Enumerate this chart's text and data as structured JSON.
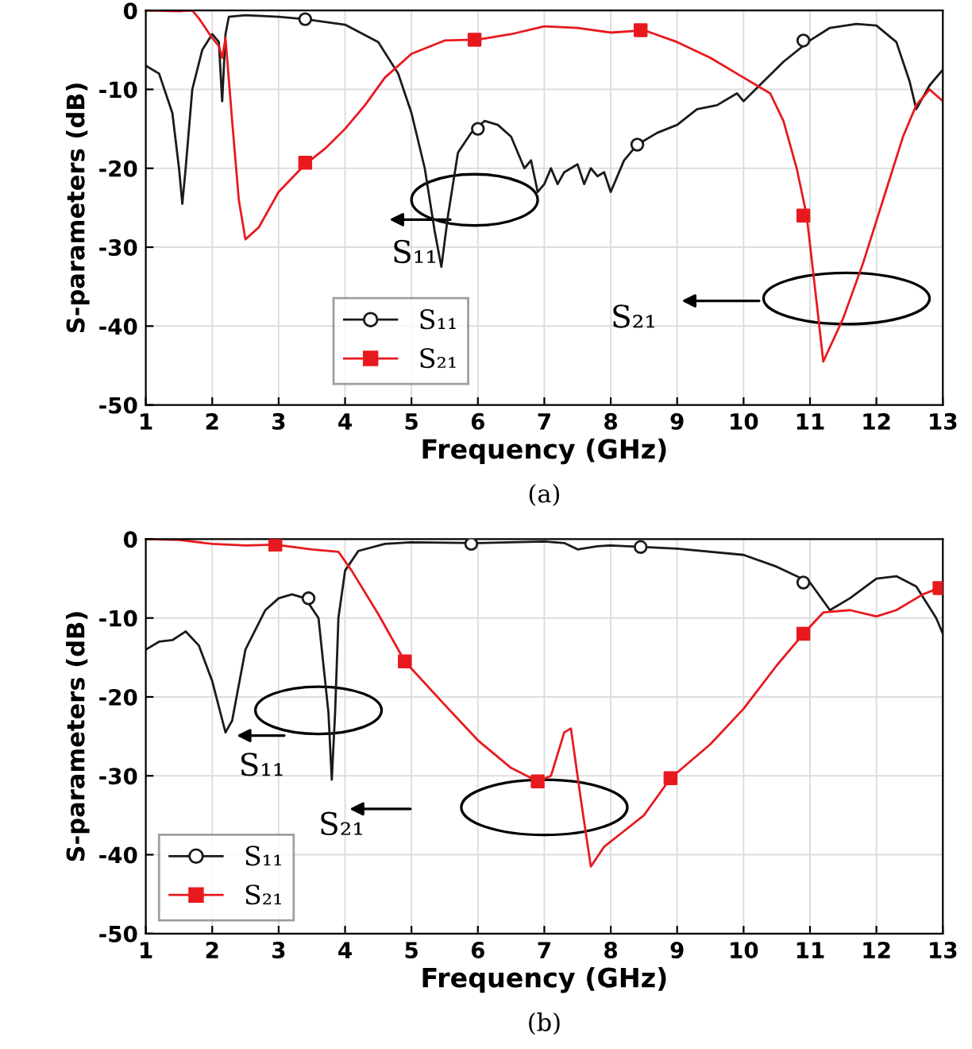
{
  "chart_data": [
    {
      "type": "line",
      "xlabel": "Frequency (GHz)",
      "ylabel": "S-parameters (dB)",
      "xlim": [
        1,
        13
      ],
      "ylim": [
        -50,
        0
      ],
      "xticks": [
        1,
        2,
        3,
        4,
        5,
        6,
        7,
        8,
        9,
        10,
        11,
        12,
        13
      ],
      "yticks": [
        -50,
        -40,
        -30,
        -20,
        -10,
        0
      ],
      "grid": true,
      "legend": "bottom",
      "line_style": "solid",
      "annotations": [
        "(a)",
        "S₁₁",
        "S₂₁"
      ],
      "series": [
        {
          "name": "S₁₁",
          "color": "#1a1a1a",
          "x": [
            1.0,
            1.2,
            1.4,
            1.5,
            1.55,
            1.6,
            1.7,
            1.85,
            2.0,
            2.1,
            2.15,
            2.2,
            2.25,
            2.5,
            3.0,
            3.4,
            4.0,
            4.5,
            4.8,
            5.0,
            5.2,
            5.35,
            5.45,
            5.55,
            5.7,
            5.9,
            6.1,
            6.3,
            6.5,
            6.7,
            6.8,
            6.9,
            7.0,
            7.1,
            7.2,
            7.3,
            7.5,
            7.6,
            7.7,
            7.8,
            7.9,
            8.0,
            8.2,
            8.4,
            8.7,
            9.0,
            9.3,
            9.6,
            9.9,
            10.0,
            10.3,
            10.6,
            11.0,
            11.3,
            11.7,
            12.0,
            12.3,
            12.5,
            12.6,
            12.7,
            12.8,
            13.0
          ],
          "values": [
            -7,
            -8,
            -13,
            -20,
            -24.5,
            -20,
            -10,
            -5,
            -3,
            -4,
            -11.5,
            -3,
            -0.8,
            -0.6,
            -0.8,
            -1.1,
            -1.8,
            -4,
            -8,
            -13,
            -20,
            -28,
            -32.5,
            -26,
            -18,
            -15.5,
            -14,
            -14.5,
            -16,
            -20,
            -19,
            -23,
            -22,
            -20,
            -22,
            -20.5,
            -19.5,
            -22,
            -20,
            -21,
            -20.5,
            -23,
            -19,
            -17,
            -15.5,
            -14.5,
            -12.5,
            -12,
            -10.5,
            -11.5,
            -9,
            -6.5,
            -3.8,
            -2.2,
            -1.7,
            -1.9,
            -4,
            -9,
            -12.5,
            -11,
            -9.5,
            -7.5
          ]
        },
        {
          "type": "scatter",
          "color": "#1a1a1a",
          "marker": "circle",
          "x": [
            3.4,
            6.0,
            8.4,
            10.9
          ],
          "values": [
            -1.1,
            -15,
            -17,
            -3.8
          ]
        },
        {
          "name": "S₂₁",
          "color": "#e8191e",
          "x": [
            1.0,
            1.5,
            1.7,
            1.8,
            2.0,
            2.1,
            2.15,
            2.2,
            2.3,
            2.4,
            2.5,
            2.7,
            3.0,
            3.4,
            3.7,
            4.0,
            4.3,
            4.6,
            5.0,
            5.5,
            6.0,
            6.5,
            7.0,
            7.5,
            8.0,
            8.5,
            9.0,
            9.5,
            10.0,
            10.4,
            10.6,
            10.8,
            10.95,
            11.1,
            11.2,
            11.5,
            11.8,
            12.1,
            12.4,
            12.6,
            12.8,
            13.0
          ],
          "values": [
            0,
            -0.1,
            0,
            -1,
            -3.5,
            -4.5,
            -6,
            -3.5,
            -14,
            -24,
            -29,
            -27.5,
            -23,
            -19.5,
            -17.5,
            -15,
            -12,
            -8.5,
            -5.5,
            -3.8,
            -3.7,
            -3,
            -2,
            -2.2,
            -2.8,
            -2.5,
            -4,
            -6,
            -8.5,
            -10.5,
            -14,
            -20,
            -26,
            -37,
            -44.5,
            -39,
            -32,
            -24,
            -16,
            -12,
            -10,
            -11.5
          ]
        },
        {
          "type": "scatter",
          "color": "#e8191e",
          "marker": "square",
          "x": [
            3.4,
            5.95,
            8.45,
            10.9
          ],
          "values": [
            -19.3,
            -3.7,
            -2.5,
            -26
          ]
        }
      ]
    },
    {
      "type": "line",
      "xlabel": "Frequency (GHz)",
      "ylabel": "S-parameters (dB)",
      "xlim": [
        1,
        13
      ],
      "ylim": [
        -50,
        0
      ],
      "xticks": [
        1,
        2,
        3,
        4,
        5,
        6,
        7,
        8,
        9,
        10,
        11,
        12,
        13
      ],
      "yticks": [
        -50,
        -40,
        -30,
        -20,
        -10,
        0
      ],
      "grid": true,
      "legend": "bottom left",
      "line_style": "solid",
      "annotations": [
        "(b)",
        "S₁₁",
        "S₂₁"
      ],
      "series": [
        {
          "name": "S₁₁",
          "color": "#1a1a1a",
          "x": [
            1.0,
            1.2,
            1.4,
            1.6,
            1.8,
            2.0,
            2.2,
            2.3,
            2.5,
            2.8,
            3.0,
            3.2,
            3.4,
            3.6,
            3.75,
            3.8,
            3.85,
            3.9,
            4.0,
            4.2,
            4.6,
            5.0,
            6.0,
            7.0,
            7.3,
            7.5,
            7.8,
            8.0,
            8.5,
            9.0,
            10.0,
            10.5,
            11.0,
            11.3,
            11.6,
            12.0,
            12.3,
            12.6,
            12.9,
            13.0
          ],
          "values": [
            -14,
            -13,
            -12.8,
            -11.7,
            -13.5,
            -18,
            -24.5,
            -23,
            -14,
            -9,
            -7.5,
            -7,
            -7.5,
            -10,
            -22,
            -30.5,
            -22,
            -10,
            -4,
            -1.5,
            -0.6,
            -0.4,
            -0.5,
            -0.3,
            -0.5,
            -1.3,
            -0.9,
            -0.8,
            -1.0,
            -1.2,
            -2.0,
            -3.5,
            -5.5,
            -9,
            -7.5,
            -5.0,
            -4.7,
            -6,
            -10,
            -12
          ]
        },
        {
          "type": "scatter",
          "color": "#1a1a1a",
          "marker": "circle",
          "x": [
            3.45,
            5.9,
            8.45,
            10.9
          ],
          "values": [
            -7.5,
            -0.6,
            -1.0,
            -5.5
          ]
        },
        {
          "name": "S₂₁",
          "color": "#e8191e",
          "x": [
            1.0,
            1.5,
            2.0,
            2.5,
            2.95,
            3.5,
            3.9,
            4.1,
            4.5,
            4.9,
            5.5,
            6.0,
            6.5,
            6.9,
            7.1,
            7.3,
            7.4,
            7.55,
            7.7,
            7.9,
            8.2,
            8.5,
            8.9,
            9.5,
            10.0,
            10.5,
            10.9,
            11.2,
            11.6,
            12.0,
            12.3,
            12.7,
            13.0
          ],
          "values": [
            0,
            -0.1,
            -0.6,
            -0.8,
            -0.7,
            -1.3,
            -1.6,
            -4,
            -9.5,
            -15.5,
            -21,
            -25.5,
            -29,
            -30.7,
            -30,
            -24.5,
            -24,
            -33,
            -41.5,
            -39,
            -37,
            -35,
            -30.3,
            -26,
            -21.5,
            -16,
            -12,
            -9.3,
            -9,
            -9.8,
            -9,
            -7,
            -6
          ]
        },
        {
          "type": "scatter",
          "color": "#e8191e",
          "marker": "square",
          "x": [
            2.95,
            4.9,
            6.9,
            8.9,
            10.9,
            12.95
          ],
          "values": [
            -0.7,
            -15.5,
            -30.7,
            -30.3,
            -12,
            -6.2
          ]
        }
      ]
    }
  ]
}
